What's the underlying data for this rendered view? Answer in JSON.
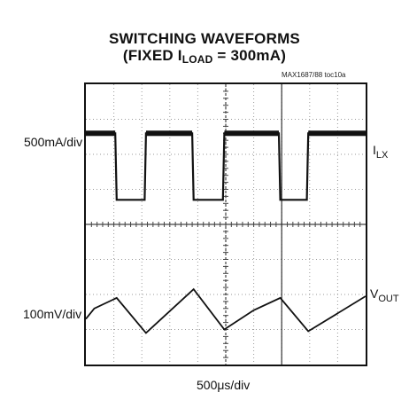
{
  "chart_data": {
    "type": "line",
    "title": "SWITCHING WAVEFORMS",
    "subtitle_prefix": "(FIXED I",
    "subtitle_sub": "LOAD",
    "subtitle_suffix": " = 300mA)",
    "toc_label": "MAX1687/88 toc10a",
    "xlabel": "500μs/div",
    "grid": true,
    "divisions": {
      "x": 10,
      "y": 8
    },
    "series": [
      {
        "name": "I",
        "name_sub": "LX",
        "scale_label": "500mA/div",
        "points": [
          [
            0.0,
            2.6
          ],
          [
            1.05,
            2.6
          ],
          [
            1.1,
            0.7
          ],
          [
            2.1,
            0.7
          ],
          [
            2.15,
            2.6
          ],
          [
            3.8,
            2.6
          ],
          [
            3.85,
            0.7
          ],
          [
            4.9,
            0.7
          ],
          [
            4.95,
            2.6
          ],
          [
            6.9,
            2.6
          ],
          [
            6.95,
            0.7
          ],
          [
            7.9,
            0.7
          ],
          [
            7.95,
            2.6
          ],
          [
            10.0,
            2.6
          ]
        ]
      },
      {
        "name": "V",
        "name_sub": "OUT",
        "scale_label": "100mV/div",
        "points": [
          [
            0.0,
            -2.7
          ],
          [
            0.3,
            -2.4
          ],
          [
            1.1,
            -2.1
          ],
          [
            2.15,
            -3.1
          ],
          [
            3.85,
            -1.85
          ],
          [
            4.95,
            -3.0
          ],
          [
            6.0,
            -2.45
          ],
          [
            6.95,
            -2.1
          ],
          [
            7.95,
            -3.05
          ],
          [
            10.0,
            -2.05
          ]
        ]
      }
    ]
  }
}
